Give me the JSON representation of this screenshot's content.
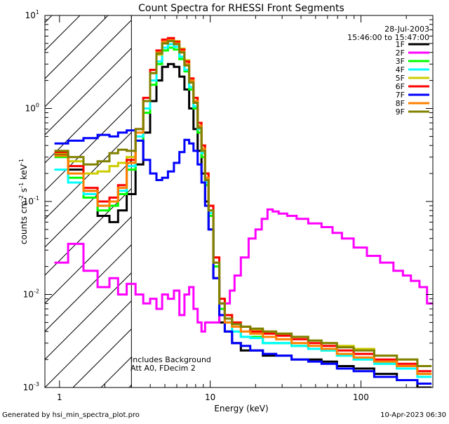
{
  "chart_data": {
    "type": "line",
    "title": "Count Spectra for RHESSI Front Segments",
    "xlabel": "Energy (keV)",
    "ylabel_parts": {
      "a": "counts cm",
      "b": "-2",
      "c": " s",
      "d": "-1",
      "e": " keV",
      "f": "-1"
    },
    "x_scale": "log",
    "y_scale": "log",
    "xlim": [
      0.8,
      300
    ],
    "ylim": [
      0.001,
      10
    ],
    "x_ticks": [
      {
        "v": 1,
        "label": "1"
      },
      {
        "v": 10,
        "label": "10"
      },
      {
        "v": 100,
        "label": "100"
      }
    ],
    "y_ticks": [
      {
        "v": 0.001,
        "base": "10",
        "exp": "-3"
      },
      {
        "v": 0.01,
        "base": "10",
        "exp": "-2"
      },
      {
        "v": 0.1,
        "base": "10",
        "exp": "-1"
      },
      {
        "v": 1,
        "base": "10",
        "exp": "0"
      },
      {
        "v": 10,
        "base": "10",
        "exp": "1"
      }
    ],
    "shaded_region": {
      "x_from": 0.8,
      "x_to": 3.0,
      "pattern": "diagonal hatch"
    },
    "date_label": "28-Jul-2003",
    "time_label": "15:46:00 to 15:47:00",
    "annotations": [
      "Includes Background",
      "Att A0, FDecim 2"
    ],
    "footer_left": "Generated by hsi_min_spectra_plot.pro",
    "footer_right": "10-Apr-2023 06:30",
    "series": [
      {
        "name": "1F",
        "color": "#000000",
        "x": [
          1,
          1.3,
          1.6,
          2,
          2.3,
          2.6,
          3,
          3.4,
          3.8,
          4.2,
          4.6,
          5,
          5.5,
          6,
          6.5,
          7,
          7.5,
          8,
          8.5,
          9,
          9.5,
          10,
          11,
          12,
          13,
          15,
          17,
          20,
          25,
          30,
          40,
          50,
          60,
          80,
          100,
          150,
          200,
          280
        ],
        "y": [
          0.32,
          0.22,
          0.13,
          0.07,
          0.06,
          0.08,
          0.12,
          0.25,
          0.55,
          1.2,
          2.0,
          2.8,
          3.0,
          2.8,
          2.2,
          1.6,
          1.0,
          0.6,
          0.35,
          0.2,
          0.1,
          0.05,
          0.015,
          0.005,
          0.004,
          0.003,
          0.0025,
          0.0025,
          0.0022,
          0.0022,
          0.002,
          0.002,
          0.0019,
          0.0017,
          0.0016,
          0.0014,
          0.0012,
          0.001
        ]
      },
      {
        "name": "2F",
        "color": "#ff00ff",
        "x": [
          1,
          1.3,
          1.6,
          2,
          2.3,
          2.6,
          3,
          3.4,
          3.8,
          4.2,
          4.6,
          5,
          5.5,
          6,
          6.5,
          7,
          7.5,
          8,
          8.5,
          9,
          9.5,
          10,
          11,
          12,
          13,
          14,
          15,
          17,
          19,
          21,
          23,
          25,
          27,
          30,
          35,
          40,
          50,
          60,
          70,
          80,
          100,
          120,
          150,
          180,
          200,
          230,
          260,
          290
        ],
        "y": [
          0.022,
          0.035,
          0.018,
          0.012,
          0.015,
          0.01,
          0.013,
          0.01,
          0.008,
          0.009,
          0.007,
          0.01,
          0.009,
          0.011,
          0.006,
          0.01,
          0.012,
          0.007,
          0.005,
          0.004,
          0.005,
          0.005,
          0.005,
          0.006,
          0.008,
          0.011,
          0.016,
          0.025,
          0.04,
          0.05,
          0.065,
          0.082,
          0.078,
          0.074,
          0.07,
          0.065,
          0.058,
          0.053,
          0.046,
          0.04,
          0.032,
          0.026,
          0.022,
          0.018,
          0.016,
          0.014,
          0.012,
          0.008
        ]
      },
      {
        "name": "3F",
        "color": "#00ff00",
        "x": [
          1,
          1.3,
          1.6,
          2,
          2.3,
          2.6,
          3,
          3.4,
          3.8,
          4.2,
          4.6,
          5,
          5.5,
          6,
          6.5,
          7,
          7.5,
          8,
          8.5,
          9,
          9.5,
          10,
          11,
          12,
          13,
          15,
          17,
          20,
          25,
          30,
          40,
          50,
          60,
          80,
          100,
          150,
          200,
          280
        ],
        "y": [
          0.3,
          0.18,
          0.11,
          0.08,
          0.09,
          0.12,
          0.22,
          0.45,
          0.9,
          1.8,
          3.0,
          4.2,
          4.5,
          4.3,
          3.4,
          2.5,
          1.6,
          1.0,
          0.55,
          0.3,
          0.15,
          0.07,
          0.02,
          0.007,
          0.005,
          0.004,
          0.0035,
          0.0035,
          0.003,
          0.003,
          0.0028,
          0.0026,
          0.0025,
          0.0022,
          0.002,
          0.0018,
          0.0016,
          0.0014
        ]
      },
      {
        "name": "4F",
        "color": "#00ffff",
        "x": [
          1,
          1.3,
          1.6,
          2,
          2.3,
          2.6,
          3,
          3.4,
          3.8,
          4.2,
          4.6,
          5,
          5.5,
          6,
          6.5,
          7,
          7.5,
          8,
          8.5,
          9,
          9.5,
          10,
          11,
          12,
          13,
          15,
          17,
          20,
          25,
          30,
          40,
          50,
          60,
          80,
          100,
          150,
          200,
          280
        ],
        "y": [
          0.22,
          0.16,
          0.12,
          0.09,
          0.1,
          0.13,
          0.24,
          0.5,
          1.0,
          2.0,
          3.2,
          4.5,
          4.9,
          4.6,
          3.6,
          2.6,
          1.7,
          1.05,
          0.6,
          0.33,
          0.16,
          0.075,
          0.022,
          0.008,
          0.005,
          0.004,
          0.0035,
          0.0034,
          0.003,
          0.003,
          0.0028,
          0.0026,
          0.0025,
          0.0022,
          0.002,
          0.0018,
          0.0016,
          0.0013
        ]
      },
      {
        "name": "5F",
        "color": "#cccc00",
        "x": [
          1,
          1.3,
          1.6,
          2,
          2.3,
          2.6,
          3,
          3.4,
          3.8,
          4.2,
          4.6,
          5,
          5.5,
          6,
          6.5,
          7,
          7.5,
          8,
          8.5,
          9,
          9.5,
          10,
          11,
          12,
          13,
          15,
          17,
          20,
          25,
          30,
          40,
          50,
          60,
          80,
          100,
          150,
          200,
          280
        ],
        "y": [
          0.33,
          0.27,
          0.2,
          0.21,
          0.24,
          0.26,
          0.3,
          0.6,
          1.2,
          2.4,
          3.8,
          5.0,
          5.5,
          5.3,
          4.4,
          3.3,
          2.1,
          1.3,
          0.7,
          0.4,
          0.2,
          0.09,
          0.025,
          0.009,
          0.006,
          0.005,
          0.0045,
          0.0042,
          0.004,
          0.0038,
          0.0035,
          0.0032,
          0.003,
          0.0028,
          0.0026,
          0.0022,
          0.002,
          0.0017
        ]
      },
      {
        "name": "6F",
        "color": "#ff0000",
        "x": [
          1,
          1.3,
          1.6,
          2,
          2.3,
          2.6,
          3,
          3.4,
          3.8,
          4.2,
          4.6,
          5,
          5.5,
          6,
          6.5,
          7,
          7.5,
          8,
          8.5,
          9,
          9.5,
          10,
          11,
          12,
          13,
          15,
          17,
          20,
          25,
          30,
          40,
          50,
          60,
          80,
          100,
          150,
          200,
          280
        ],
        "y": [
          0.34,
          0.24,
          0.14,
          0.1,
          0.11,
          0.15,
          0.28,
          0.6,
          1.3,
          2.6,
          4.2,
          5.5,
          5.7,
          5.2,
          4.3,
          3.2,
          2.1,
          1.3,
          0.7,
          0.4,
          0.2,
          0.09,
          0.025,
          0.009,
          0.006,
          0.005,
          0.0045,
          0.004,
          0.0038,
          0.0036,
          0.0033,
          0.003,
          0.0028,
          0.0025,
          0.0023,
          0.002,
          0.0018,
          0.0015
        ]
      },
      {
        "name": "7F",
        "color": "#0000ff",
        "x": [
          1,
          1.3,
          1.6,
          2,
          2.3,
          2.6,
          3,
          3.4,
          3.8,
          4.2,
          4.6,
          5,
          5.5,
          6,
          6.5,
          7,
          7.5,
          8,
          8.5,
          9,
          9.5,
          10,
          11,
          12,
          13,
          15,
          17,
          20,
          25,
          30,
          40,
          50,
          60,
          80,
          100,
          150,
          200,
          280
        ],
        "y": [
          0.42,
          0.45,
          0.48,
          0.52,
          0.5,
          0.55,
          0.58,
          0.45,
          0.28,
          0.2,
          0.17,
          0.18,
          0.21,
          0.26,
          0.34,
          0.46,
          0.42,
          0.35,
          0.25,
          0.16,
          0.09,
          0.05,
          0.015,
          0.006,
          0.004,
          0.003,
          0.0028,
          0.0025,
          0.0023,
          0.0022,
          0.002,
          0.0019,
          0.0018,
          0.0016,
          0.0015,
          0.0013,
          0.0012,
          0.0011
        ]
      },
      {
        "name": "8F",
        "color": "#ff8000",
        "x": [
          1,
          1.3,
          1.6,
          2,
          2.3,
          2.6,
          3,
          3.4,
          3.8,
          4.2,
          4.6,
          5,
          5.5,
          6,
          6.5,
          7,
          7.5,
          8,
          8.5,
          9,
          9.5,
          10,
          11,
          12,
          13,
          15,
          17,
          20,
          25,
          30,
          40,
          50,
          60,
          80,
          100,
          150,
          200,
          280
        ],
        "y": [
          0.31,
          0.2,
          0.13,
          0.09,
          0.1,
          0.14,
          0.26,
          0.55,
          1.2,
          2.4,
          4.0,
          5.2,
          5.4,
          5.0,
          4.1,
          3.0,
          2.0,
          1.2,
          0.65,
          0.37,
          0.18,
          0.08,
          0.022,
          0.008,
          0.005,
          0.0045,
          0.004,
          0.0038,
          0.0035,
          0.0033,
          0.003,
          0.0028,
          0.0026,
          0.0023,
          0.0021,
          0.0019,
          0.0017,
          0.0014
        ]
      },
      {
        "name": "9F",
        "color": "#808000",
        "x": [
          1,
          1.3,
          1.6,
          2,
          2.3,
          2.6,
          3,
          3.4,
          3.8,
          4.2,
          4.6,
          5,
          5.5,
          6,
          6.5,
          7,
          7.5,
          8,
          8.5,
          9,
          9.5,
          10,
          11,
          12,
          13,
          15,
          17,
          20,
          25,
          30,
          40,
          50,
          60,
          80,
          100,
          150,
          200,
          280
        ],
        "y": [
          0.35,
          0.3,
          0.25,
          0.27,
          0.33,
          0.36,
          0.35,
          0.6,
          1.2,
          2.4,
          3.9,
          5.0,
          5.3,
          4.9,
          4.0,
          2.9,
          1.9,
          1.15,
          0.62,
          0.35,
          0.17,
          0.08,
          0.022,
          0.008,
          0.0055,
          0.0048,
          0.0045,
          0.0043,
          0.004,
          0.0038,
          0.0035,
          0.0032,
          0.003,
          0.0027,
          0.0025,
          0.0022,
          0.002,
          0.0017
        ]
      }
    ]
  }
}
